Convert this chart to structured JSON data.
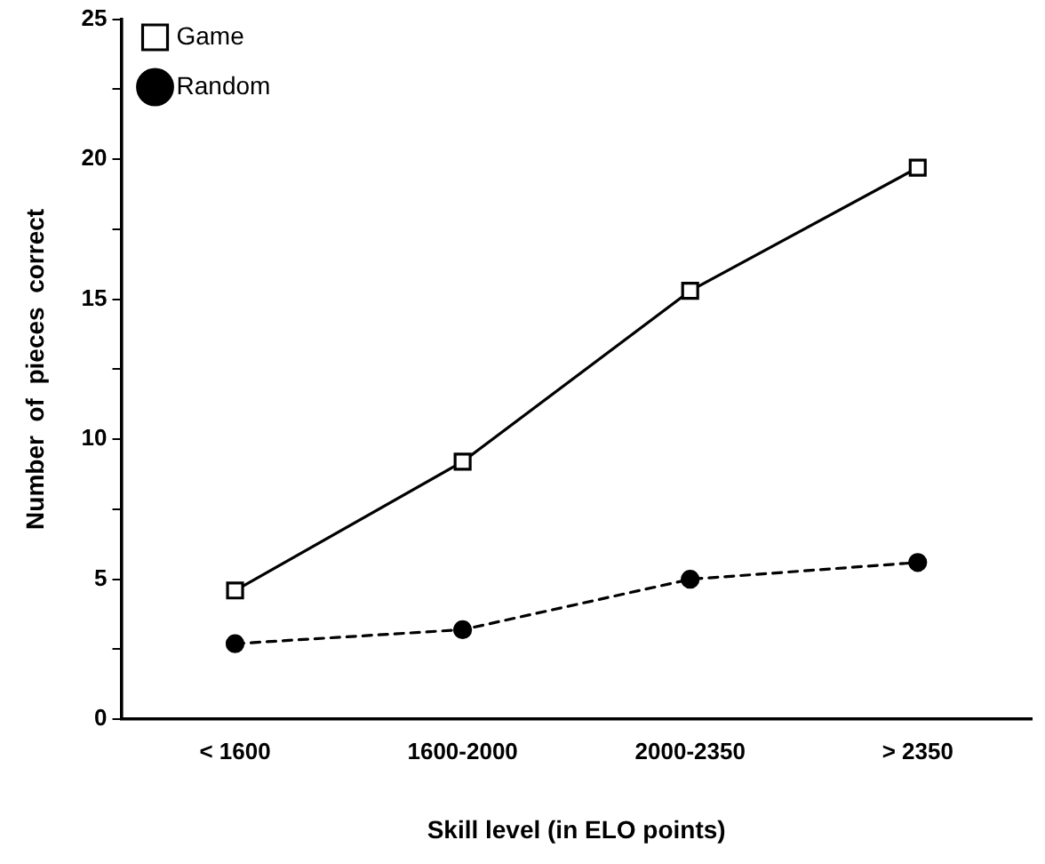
{
  "chart_data": {
    "type": "line",
    "xlabel": "Skill level (in ELO points)",
    "ylabel": "Number  of  pieces  correct",
    "categories": [
      "< 1600",
      "1600-2000",
      "2000-2350",
      "> 2350"
    ],
    "series": [
      {
        "name": "Game",
        "color": "#000000",
        "values": [
          4.6,
          9.2,
          15.3,
          19.7
        ],
        "marker": "square",
        "line_style": "solid"
      },
      {
        "name": "Random",
        "color": "#000000",
        "values": [
          2.7,
          3.2,
          5.0,
          5.6
        ],
        "marker": "circle",
        "line_style": "dashed"
      }
    ],
    "ylim": [
      0,
      25
    ],
    "yticks": [
      0,
      {
        "value": 2.5,
        "label": null
      },
      5,
      {
        "value": 7.5,
        "label": null
      },
      10,
      {
        "value": 12.5,
        "label": null
      },
      15,
      {
        "value": 17.5,
        "label": null
      },
      20,
      {
        "value": 22.5,
        "label": null
      },
      25
    ],
    "grid": false,
    "legend": "top left"
  }
}
